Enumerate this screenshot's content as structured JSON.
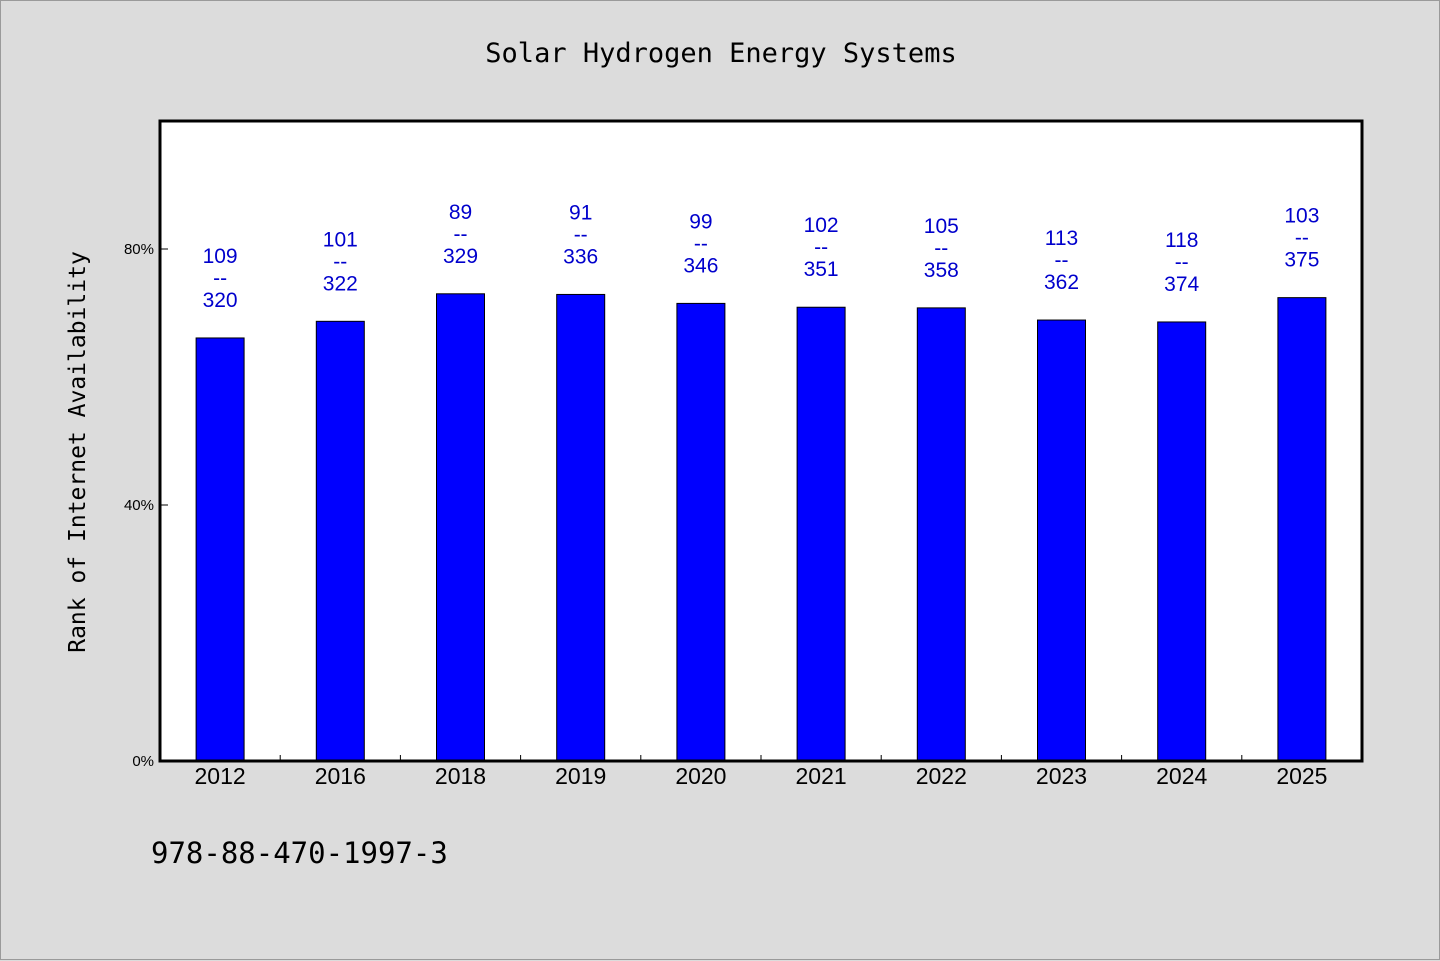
{
  "chart_data": {
    "type": "bar",
    "title": "Solar Hydrogen Energy Systems",
    "ylabel": "Rank of Internet Availability",
    "xlabel": "",
    "categories": [
      "2012",
      "2016",
      "2018",
      "2019",
      "2020",
      "2021",
      "2022",
      "2023",
      "2024",
      "2025"
    ],
    "series": [
      {
        "values": [
          66.1,
          68.7,
          73.0,
          72.9,
          71.5,
          70.9,
          70.8,
          68.9,
          68.6,
          72.4
        ]
      }
    ],
    "data_labels": [
      {
        "top": "109",
        "sep": "--",
        "bottom": "320"
      },
      {
        "top": "101",
        "sep": "--",
        "bottom": "322"
      },
      {
        "top": "89",
        "sep": "--",
        "bottom": "329"
      },
      {
        "top": "91",
        "sep": "--",
        "bottom": "336"
      },
      {
        "top": "99",
        "sep": "--",
        "bottom": "346"
      },
      {
        "top": "102",
        "sep": "--",
        "bottom": "351"
      },
      {
        "top": "105",
        "sep": "--",
        "bottom": "358"
      },
      {
        "top": "113",
        "sep": "--",
        "bottom": "362"
      },
      {
        "top": "118",
        "sep": "--",
        "bottom": "374"
      },
      {
        "top": "103",
        "sep": "--",
        "bottom": "375"
      }
    ],
    "ylim": [
      0,
      100
    ],
    "yticks": [
      0,
      40,
      80
    ],
    "ytick_labels": [
      "0%",
      "40%",
      "80%"
    ],
    "grid": false,
    "legend": "none",
    "bar_color": "#0000ff",
    "label_color": "#0000cc"
  },
  "footer_note": "978-88-470-1997-3"
}
